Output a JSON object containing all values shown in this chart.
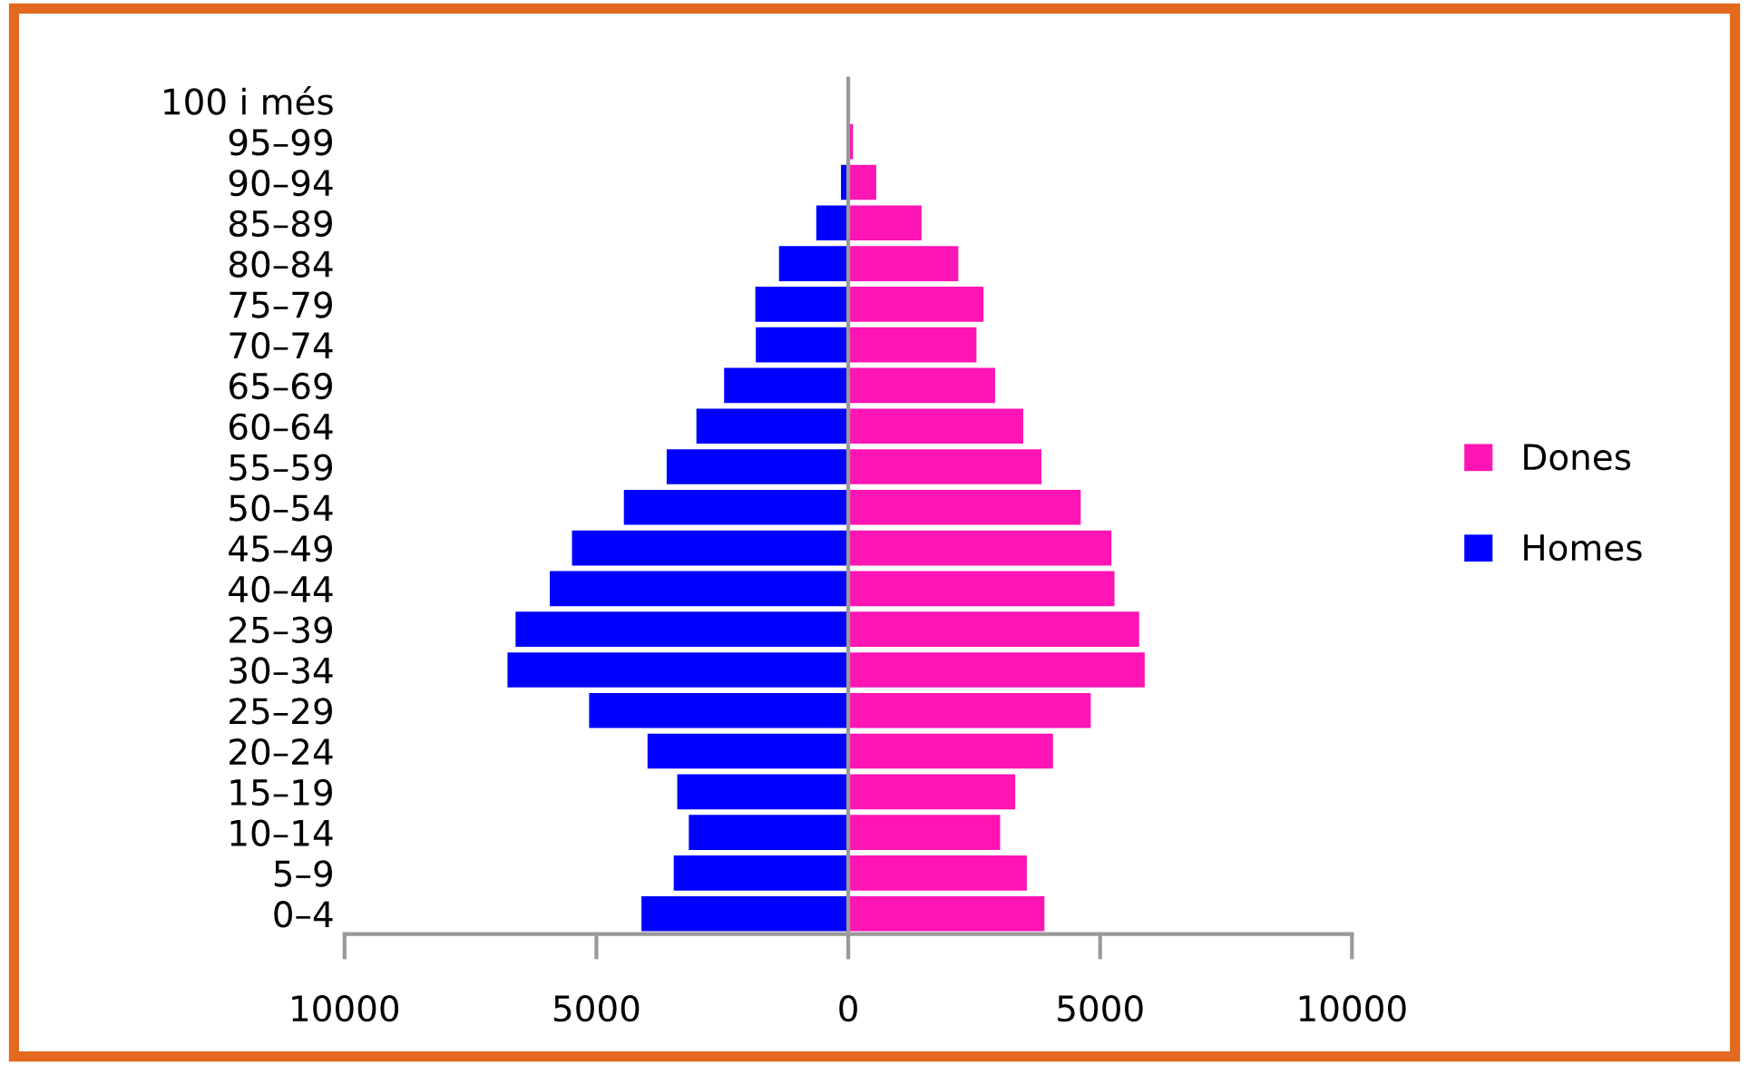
{
  "chart_data": {
    "type": "bar",
    "orientation": "horizontal",
    "stacked": true,
    "categories": [
      "100 i més",
      "95–99",
      "90–94",
      "85–89",
      "80–84",
      "75–79",
      "70–74",
      "65–69",
      "60–64",
      "55–59",
      "50–54",
      "45–49",
      "40–44",
      "25–39",
      "30–34",
      "25–29",
      "20–24",
      "15–19",
      "10–14",
      "5–9",
      "0–4"
    ],
    "series": [
      {
        "name": "Dones",
        "color": "#ff14b4",
        "values": [
          null,
          110,
          570,
          1470,
          2200,
          2700,
          2560,
          2930,
          3490,
          3850,
          4630,
          5240,
          5300,
          5790,
          5900,
          4830,
          4080,
          3330,
          3030,
          3560,
          3910
        ]
      },
      {
        "name": "Homes",
        "color": "#0000ff",
        "values": [
          null,
          null,
          -160,
          -650,
          -1390,
          -1860,
          -1850,
          -2480,
          -3030,
          -3620,
          -4470,
          -5500,
          -5940,
          -6620,
          -6780,
          -5160,
          -4000,
          -3410,
          -3180,
          -3480,
          -4120
        ]
      }
    ],
    "xlim": [
      -10000,
      10000
    ],
    "xticks": [
      {
        "value": -10000,
        "label": "10000"
      },
      {
        "value": -5000,
        "label": "5000"
      },
      0,
      5000,
      10000
    ],
    "legend": "right"
  }
}
